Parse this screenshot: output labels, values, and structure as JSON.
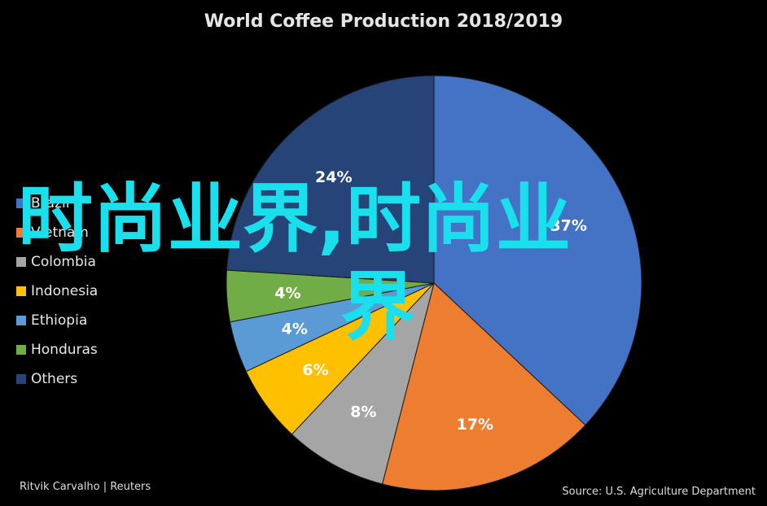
{
  "chart_data": {
    "type": "pie",
    "title": "World Coffee Production 2018/2019",
    "slices": [
      {
        "label": "Brazil",
        "value": 37,
        "label_text": "37%",
        "color": "#4472c4"
      },
      {
        "label": "Vietnam",
        "value": 17,
        "label_text": "17%",
        "color": "#ed7d31"
      },
      {
        "label": "Colombia",
        "value": 8,
        "label_text": "8%",
        "color": "#a5a5a5"
      },
      {
        "label": "Indonesia",
        "value": 6,
        "label_text": "6%",
        "color": "#ffc000"
      },
      {
        "label": "Ethiopia",
        "value": 4,
        "label_text": "4%",
        "color": "#5b9bd5"
      },
      {
        "label": "Honduras",
        "value": 4,
        "label_text": "4%",
        "color": "#70ad47"
      },
      {
        "label": "Others",
        "value": 24,
        "label_text": "24%",
        "color": "#264478"
      }
    ],
    "legend_position": "left"
  },
  "credits": {
    "author": "Ritvik Carvalho | Reuters",
    "source": "Source: U.S. Agriculture Department"
  },
  "overlay": {
    "line1": "时尚业界,时尚业",
    "line2": "界"
  }
}
